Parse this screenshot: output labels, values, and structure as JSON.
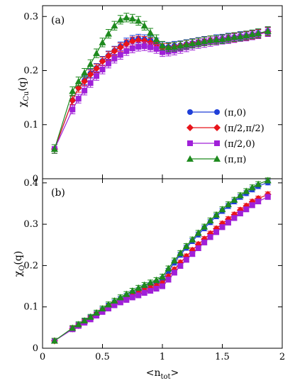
{
  "chart_data": [
    {
      "type": "line",
      "panel_label": "(a)",
      "ylabel": {
        "main": "χ",
        "sub": "Cu",
        "suffix": "(q)"
      },
      "xlabel": "",
      "xlim": [
        0,
        2
      ],
      "ylim": [
        0,
        0.32
      ],
      "xticks": [
        0,
        0.5,
        1,
        1.5,
        2
      ],
      "yticks": [
        0,
        0.1,
        0.2,
        0.3
      ],
      "ytick_labels": [
        "0",
        "0.1",
        "0.2",
        "0.3"
      ],
      "legend_position": "center-right",
      "series": [
        {
          "name": "(π,0)",
          "color": "#1f3fd8",
          "marker": "circle",
          "x": [
            0.1,
            0.25,
            0.3,
            0.35,
            0.4,
            0.45,
            0.5,
            0.55,
            0.6,
            0.65,
            0.7,
            0.75,
            0.8,
            0.85,
            0.9,
            0.95,
            1.0,
            1.05,
            1.1,
            1.15,
            1.2,
            1.25,
            1.3,
            1.35,
            1.4,
            1.45,
            1.5,
            1.55,
            1.6,
            1.65,
            1.7,
            1.75,
            1.8,
            1.88
          ],
          "y": [
            0.055,
            0.145,
            0.168,
            0.182,
            0.195,
            0.205,
            0.218,
            0.228,
            0.237,
            0.245,
            0.252,
            0.257,
            0.259,
            0.258,
            0.256,
            0.252,
            0.245,
            0.244,
            0.246,
            0.247,
            0.249,
            0.251,
            0.253,
            0.255,
            0.256,
            0.258,
            0.259,
            0.261,
            0.262,
            0.264,
            0.265,
            0.267,
            0.269,
            0.273
          ]
        },
        {
          "name": "(π/2,π/2)",
          "color": "#e8141a",
          "marker": "diamond",
          "x": [
            0.1,
            0.25,
            0.3,
            0.35,
            0.4,
            0.45,
            0.5,
            0.55,
            0.6,
            0.65,
            0.7,
            0.75,
            0.8,
            0.85,
            0.9,
            0.95,
            1.0,
            1.05,
            1.1,
            1.15,
            1.2,
            1.25,
            1.3,
            1.35,
            1.4,
            1.45,
            1.5,
            1.55,
            1.6,
            1.65,
            1.7,
            1.75,
            1.8,
            1.88
          ],
          "y": [
            0.055,
            0.145,
            0.168,
            0.18,
            0.193,
            0.204,
            0.217,
            0.227,
            0.236,
            0.243,
            0.249,
            0.254,
            0.256,
            0.255,
            0.252,
            0.248,
            0.242,
            0.242,
            0.244,
            0.246,
            0.248,
            0.25,
            0.252,
            0.254,
            0.256,
            0.257,
            0.258,
            0.26,
            0.261,
            0.263,
            0.264,
            0.266,
            0.268,
            0.272
          ]
        },
        {
          "name": "(π/2,0)",
          "color": "#a020d8",
          "marker": "square",
          "x": [
            0.1,
            0.25,
            0.3,
            0.35,
            0.4,
            0.45,
            0.5,
            0.55,
            0.6,
            0.65,
            0.7,
            0.75,
            0.8,
            0.85,
            0.9,
            0.95,
            1.0,
            1.05,
            1.1,
            1.15,
            1.2,
            1.25,
            1.3,
            1.35,
            1.4,
            1.45,
            1.5,
            1.55,
            1.6,
            1.65,
            1.7,
            1.75,
            1.8,
            1.88
          ],
          "y": [
            0.055,
            0.128,
            0.148,
            0.163,
            0.177,
            0.19,
            0.202,
            0.213,
            0.222,
            0.229,
            0.236,
            0.241,
            0.244,
            0.245,
            0.243,
            0.24,
            0.234,
            0.235,
            0.237,
            0.24,
            0.243,
            0.246,
            0.249,
            0.251,
            0.253,
            0.255,
            0.257,
            0.258,
            0.26,
            0.262,
            0.263,
            0.265,
            0.267,
            0.271
          ]
        },
        {
          "name": "(π,π)",
          "color": "#1e8a1e",
          "marker": "triangle",
          "x": [
            0.1,
            0.25,
            0.3,
            0.35,
            0.4,
            0.45,
            0.5,
            0.55,
            0.6,
            0.65,
            0.7,
            0.75,
            0.8,
            0.85,
            0.9,
            0.95,
            1.0,
            1.05,
            1.1,
            1.15,
            1.2,
            1.25,
            1.3,
            1.35,
            1.4,
            1.45,
            1.5,
            1.55,
            1.6,
            1.65,
            1.7,
            1.75,
            1.8,
            1.88
          ],
          "y": [
            0.055,
            0.162,
            0.18,
            0.196,
            0.212,
            0.232,
            0.252,
            0.268,
            0.283,
            0.294,
            0.298,
            0.296,
            0.292,
            0.283,
            0.27,
            0.258,
            0.246,
            0.243,
            0.244,
            0.246,
            0.248,
            0.25,
            0.252,
            0.254,
            0.256,
            0.257,
            0.258,
            0.26,
            0.262,
            0.263,
            0.265,
            0.267,
            0.269,
            0.273
          ]
        }
      ]
    },
    {
      "type": "line",
      "panel_label": "(b)",
      "ylabel": {
        "main": "χ",
        "sub": "O",
        "suffix": "(q)"
      },
      "xlabel": {
        "main": "<n",
        "sub": "tot",
        "suffix": ">"
      },
      "xlim": [
        0,
        2
      ],
      "ylim": [
        0,
        0.41
      ],
      "xticks": [
        0,
        0.5,
        1,
        1.5,
        2
      ],
      "xtick_labels": [
        "0",
        "0.5",
        "1",
        "1.5",
        "2"
      ],
      "yticks": [
        0,
        0.1,
        0.2,
        0.3,
        0.4
      ],
      "ytick_labels": [
        "0",
        "0.1",
        "0.2",
        "0.3",
        "0.4"
      ],
      "series": [
        {
          "name": "(π,0)",
          "color": "#1f3fd8",
          "marker": "circle",
          "x": [
            0.1,
            0.25,
            0.3,
            0.35,
            0.4,
            0.45,
            0.5,
            0.55,
            0.6,
            0.65,
            0.7,
            0.75,
            0.8,
            0.85,
            0.9,
            0.95,
            1.0,
            1.05,
            1.1,
            1.15,
            1.2,
            1.25,
            1.3,
            1.35,
            1.4,
            1.45,
            1.5,
            1.55,
            1.6,
            1.65,
            1.7,
            1.75,
            1.8,
            1.88
          ],
          "y": [
            0.018,
            0.048,
            0.056,
            0.065,
            0.074,
            0.083,
            0.093,
            0.103,
            0.111,
            0.119,
            0.126,
            0.133,
            0.14,
            0.147,
            0.153,
            0.158,
            0.167,
            0.187,
            0.207,
            0.226,
            0.243,
            0.259,
            0.275,
            0.29,
            0.305,
            0.319,
            0.332,
            0.344,
            0.355,
            0.366,
            0.375,
            0.384,
            0.392,
            0.401
          ]
        },
        {
          "name": "(π/2,π/2)",
          "color": "#e8141a",
          "marker": "diamond",
          "x": [
            0.1,
            0.25,
            0.3,
            0.35,
            0.4,
            0.45,
            0.5,
            0.55,
            0.6,
            0.65,
            0.7,
            0.75,
            0.8,
            0.85,
            0.9,
            0.95,
            1.0,
            1.05,
            1.1,
            1.15,
            1.2,
            1.25,
            1.3,
            1.35,
            1.4,
            1.45,
            1.5,
            1.55,
            1.6,
            1.65,
            1.7,
            1.75,
            1.8,
            1.88
          ],
          "y": [
            0.018,
            0.047,
            0.055,
            0.064,
            0.072,
            0.081,
            0.09,
            0.099,
            0.107,
            0.114,
            0.121,
            0.127,
            0.133,
            0.139,
            0.145,
            0.15,
            0.157,
            0.173,
            0.19,
            0.207,
            0.222,
            0.237,
            0.251,
            0.264,
            0.277,
            0.289,
            0.301,
            0.312,
            0.323,
            0.334,
            0.344,
            0.354,
            0.362,
            0.372
          ]
        },
        {
          "name": "(π/2,0)",
          "color": "#a020d8",
          "marker": "square",
          "x": [
            0.1,
            0.25,
            0.3,
            0.35,
            0.4,
            0.45,
            0.5,
            0.55,
            0.6,
            0.65,
            0.7,
            0.75,
            0.8,
            0.85,
            0.9,
            0.95,
            1.0,
            1.05,
            1.1,
            1.15,
            1.2,
            1.25,
            1.3,
            1.35,
            1.4,
            1.45,
            1.5,
            1.55,
            1.6,
            1.65,
            1.7,
            1.75,
            1.8,
            1.88
          ],
          "y": [
            0.018,
            0.046,
            0.054,
            0.062,
            0.07,
            0.079,
            0.088,
            0.096,
            0.104,
            0.111,
            0.117,
            0.123,
            0.128,
            0.134,
            0.139,
            0.144,
            0.15,
            0.166,
            0.183,
            0.199,
            0.214,
            0.228,
            0.242,
            0.256,
            0.269,
            0.281,
            0.293,
            0.304,
            0.315,
            0.326,
            0.336,
            0.346,
            0.355,
            0.366
          ]
        },
        {
          "name": "(π,π)",
          "color": "#1e8a1e",
          "marker": "triangle",
          "x": [
            0.1,
            0.25,
            0.3,
            0.35,
            0.4,
            0.45,
            0.5,
            0.55,
            0.6,
            0.65,
            0.7,
            0.75,
            0.8,
            0.85,
            0.9,
            0.95,
            1.0,
            1.05,
            1.1,
            1.15,
            1.2,
            1.25,
            1.3,
            1.35,
            1.4,
            1.45,
            1.5,
            1.55,
            1.6,
            1.65,
            1.7,
            1.75,
            1.8,
            1.88
          ],
          "y": [
            0.018,
            0.049,
            0.058,
            0.067,
            0.076,
            0.086,
            0.096,
            0.106,
            0.115,
            0.123,
            0.131,
            0.139,
            0.146,
            0.153,
            0.159,
            0.165,
            0.173,
            0.193,
            0.212,
            0.23,
            0.247,
            0.263,
            0.279,
            0.294,
            0.309,
            0.323,
            0.336,
            0.348,
            0.359,
            0.37,
            0.38,
            0.389,
            0.397,
            0.406
          ]
        }
      ]
    }
  ]
}
